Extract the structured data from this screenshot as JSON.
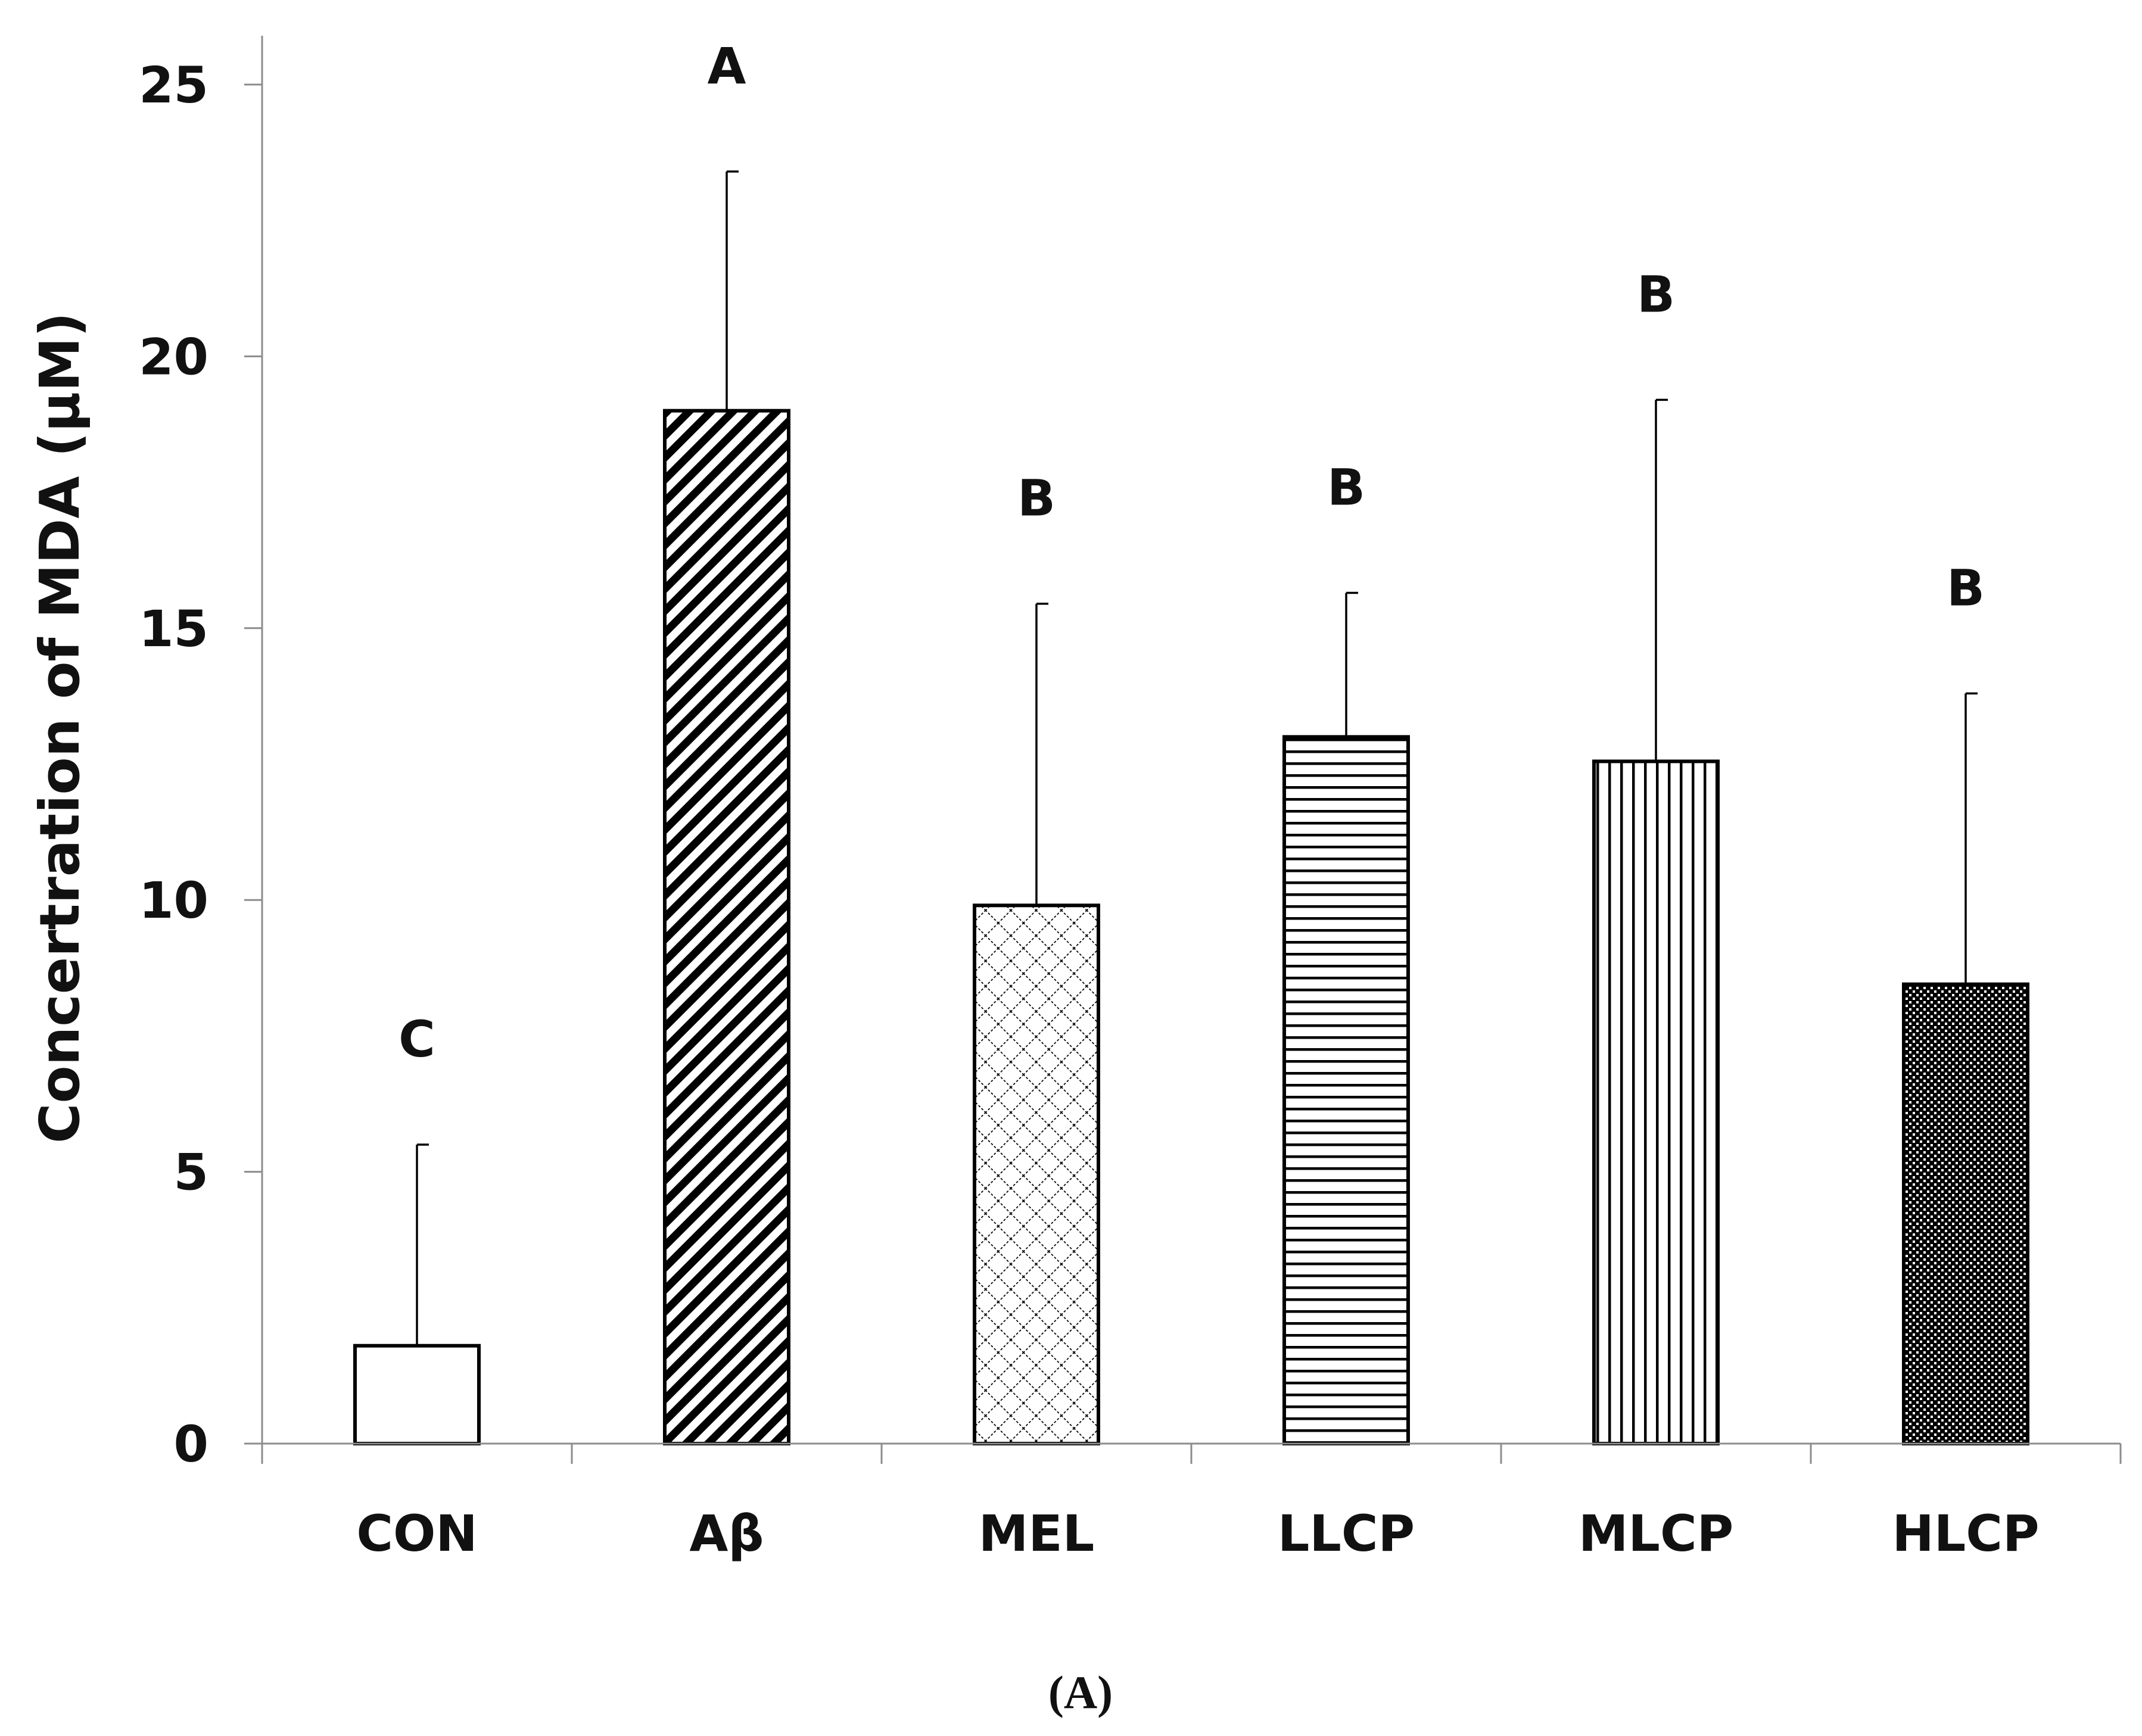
{
  "chart_data": {
    "type": "bar",
    "title": "",
    "panel_label": "(A)",
    "xlabel": "",
    "ylabel": "Concertration of MDA (μM)",
    "ylim": [
      0,
      25
    ],
    "yticks": [
      0,
      5,
      10,
      15,
      20,
      25
    ],
    "categories": [
      "CON",
      "Aβ",
      "MEL",
      "LLCP",
      "MLCP",
      "HLCP"
    ],
    "values": [
      1.8,
      19.0,
      9.9,
      13.0,
      12.55,
      8.45
    ],
    "errors": [
      3.7,
      4.4,
      5.55,
      2.65,
      6.65,
      5.35
    ],
    "significance": [
      "C",
      "A",
      "B",
      "B",
      "B",
      "B"
    ],
    "patterns": [
      "none",
      "diagonal",
      "crosshatch",
      "horizontal",
      "vertical",
      "dense-dots"
    ],
    "bar_edge_color": "#000000",
    "bar_fill_color": "#ffffff"
  }
}
